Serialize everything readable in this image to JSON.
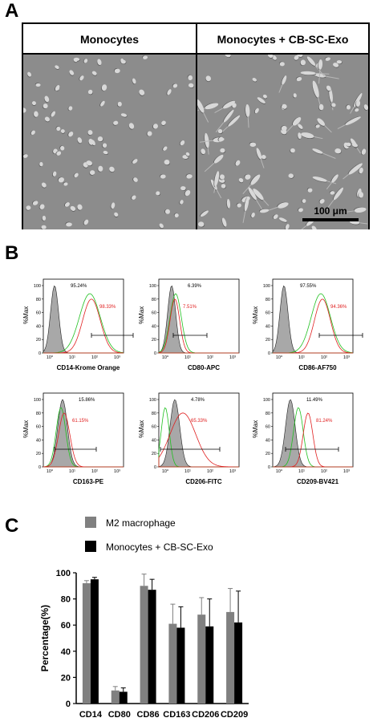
{
  "panels": {
    "a": "A",
    "b": "B",
    "c": "C"
  },
  "micrograph": {
    "left_label": "Monocytes",
    "right_label": "Monocytes + CB-SC-Exo",
    "scale_bar": "100 μm"
  },
  "flow_plots": [
    {
      "xlabel": "CD14-Krome Orange",
      "gray_label": "95.24%",
      "red_label": "98.33%",
      "gray_color": "#000000",
      "red_color": "#e02020"
    },
    {
      "xlabel": "CD80-APC",
      "gray_label": "6.39%",
      "red_label": "7.51%",
      "gray_color": "#000000",
      "red_color": "#e02020"
    },
    {
      "xlabel": "CD86-AF750",
      "gray_label": "97.55%",
      "red_label": "94.36%",
      "gray_color": "#000000",
      "red_color": "#e02020"
    },
    {
      "xlabel": "CD163-PE",
      "gray_label": "15.86%",
      "red_label": "61.15%",
      "gray_color": "#000000",
      "red_color": "#e02020"
    },
    {
      "xlabel": "CD206-FITC",
      "gray_label": "4.78%",
      "red_label": "65.33%",
      "gray_color": "#000000",
      "red_color": "#e02020"
    },
    {
      "xlabel": "CD209-BV421",
      "gray_label": "11.49%",
      "red_label": "81.24%",
      "gray_color": "#000000",
      "red_color": "#e02020"
    }
  ],
  "flow_axis": {
    "ylabel": "%Max",
    "yticks": [
      "0",
      "20",
      "40",
      "60",
      "80",
      "100"
    ],
    "xticks": [
      "10⁰",
      "10¹",
      "10²",
      "10³"
    ]
  },
  "chart_data": {
    "type": "bar",
    "categories": [
      "CD14",
      "CD80",
      "CD86",
      "CD163",
      "CD206",
      "CD209"
    ],
    "series": [
      {
        "name": "M2 macrophage",
        "values": [
          92,
          10,
          90,
          61,
          68,
          70
        ],
        "errors": [
          2,
          3,
          9,
          15,
          13,
          18
        ],
        "color": "#808080"
      },
      {
        "name": "Monocytes + CB-SC-Exo",
        "values": [
          95,
          9,
          87,
          58,
          59,
          62
        ],
        "errors": [
          1.5,
          3,
          8,
          16,
          21,
          24
        ],
        "color": "#000000"
      }
    ],
    "ylabel": "Percentage(%)",
    "ylim": [
      0,
      100
    ],
    "yticks": [
      0,
      20,
      40,
      60,
      80,
      100
    ],
    "legend": "top-left"
  }
}
